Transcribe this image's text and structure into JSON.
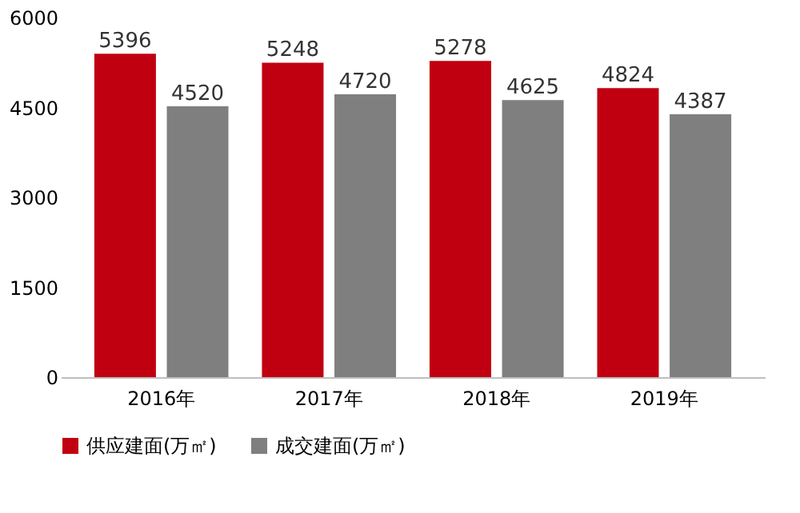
{
  "chart_data": {
    "type": "bar",
    "categories": [
      "2016年",
      "2017年",
      "2018年",
      "2019年"
    ],
    "series": [
      {
        "name": "供应建面(万㎡)",
        "color": "#c00010",
        "values": [
          5396,
          5248,
          5278,
          4824
        ]
      },
      {
        "name": "成交建面(万㎡)",
        "color": "#7f7f7f",
        "values": [
          4520,
          4720,
          4625,
          4387
        ]
      }
    ],
    "ylim": [
      0,
      6000
    ],
    "yticks": [
      0,
      1500,
      3000,
      4500,
      6000
    ],
    "grid": false,
    "data_labels": true,
    "legend": "bottom"
  }
}
